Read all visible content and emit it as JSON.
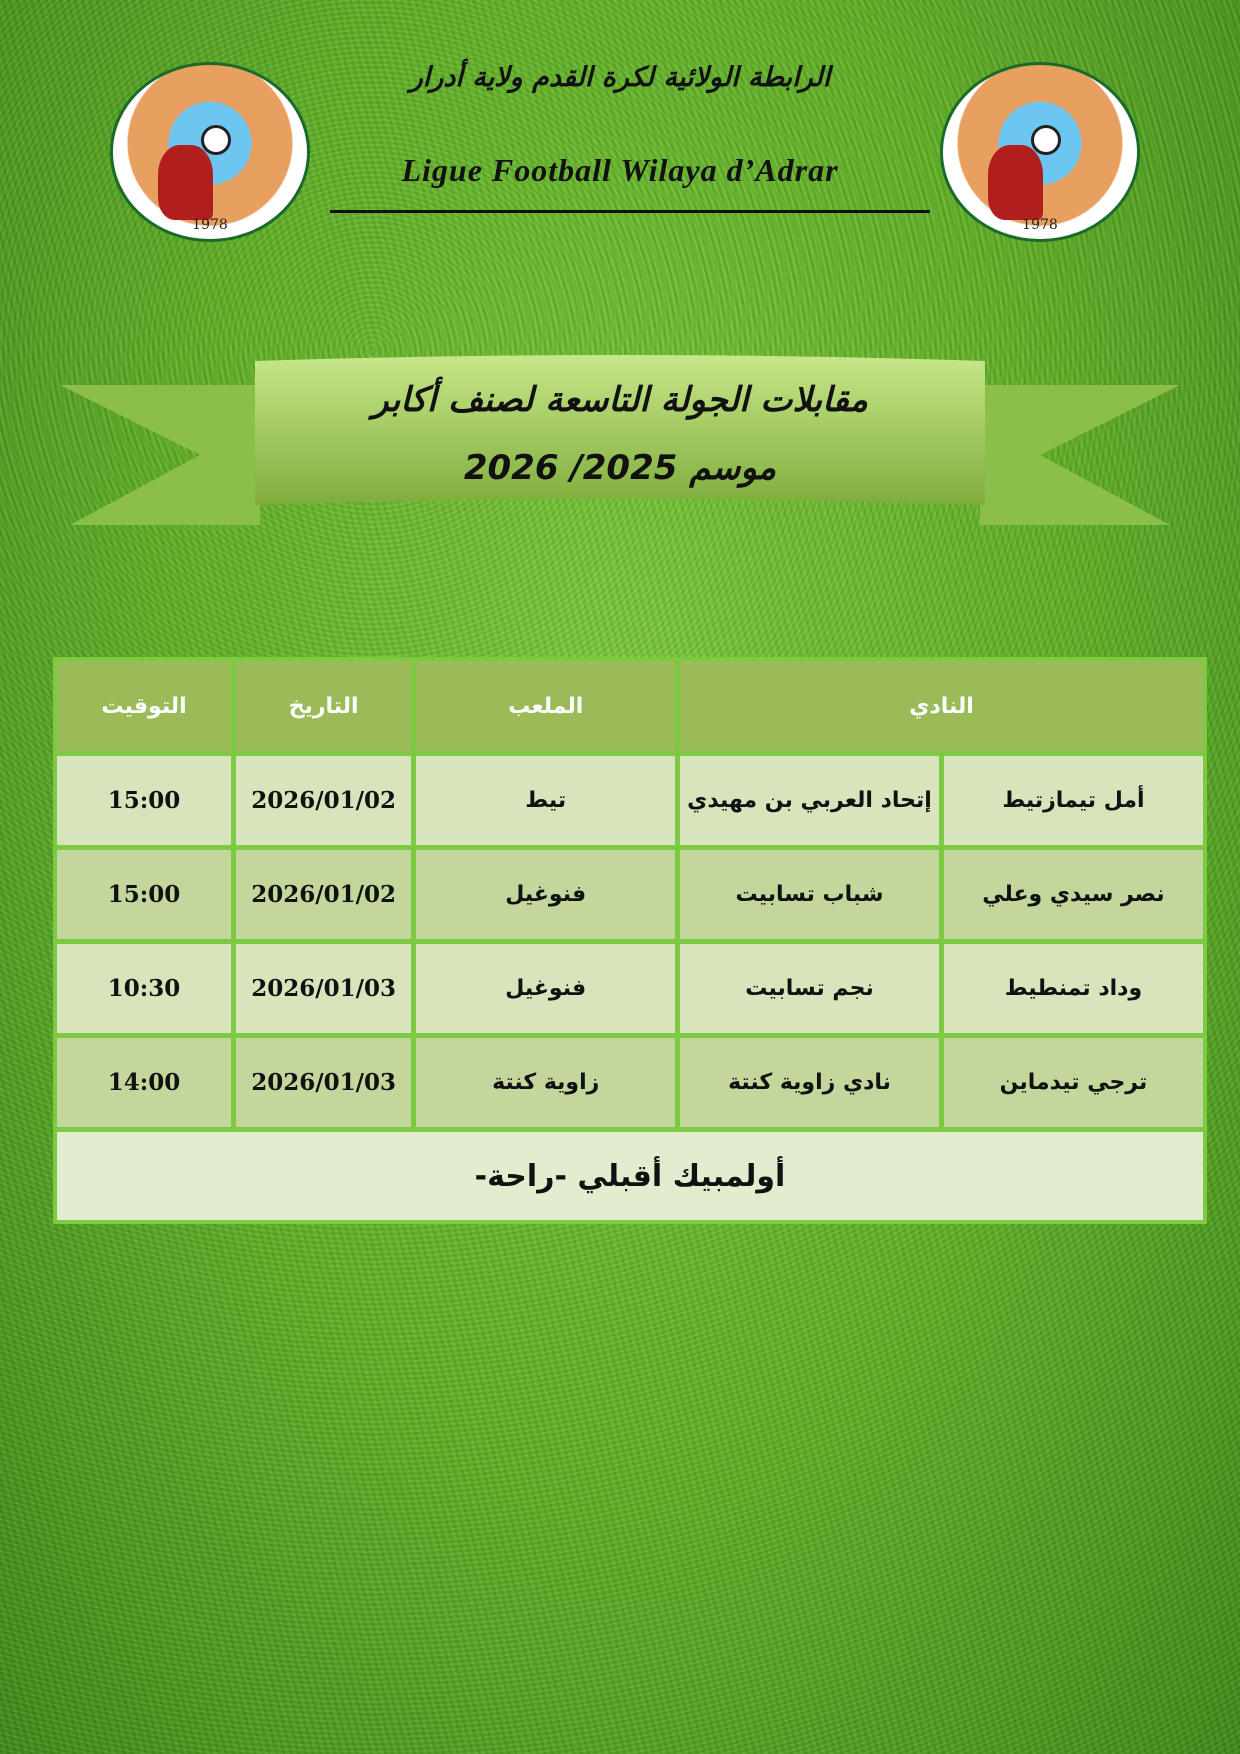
{
  "header": {
    "title_ar": "الرابطة الولائية لكرة القدم ولاية أدرار",
    "title_fr": "Ligue Football Wilaya d’Adrar",
    "logo_year": "1978"
  },
  "banner": {
    "title": "مقابلات الجولة التاسعة لصنف أكابر",
    "season": "موسم 2025/ 2026"
  },
  "table": {
    "headers": {
      "club": "النادي",
      "stadium": "الملعب",
      "date": "التاريخ",
      "time": "التوقيت"
    },
    "rows": [
      {
        "home": "أمل تيمازتيط",
        "away": "إتحاد العربي بن مهيدي",
        "stadium": "تيط",
        "date": "2026/01/02",
        "time": "15:00"
      },
      {
        "home": "نصر سيدي وعلي",
        "away": "شباب تسابيت",
        "stadium": "فنوغيل",
        "date": "2026/01/02",
        "time": "15:00"
      },
      {
        "home": "وداد تمنطيط",
        "away": "نجم تسابيت",
        "stadium": "فنوغيل",
        "date": "2026/01/03",
        "time": "10:30"
      },
      {
        "home": "ترجي تيدماين",
        "away": "نادي زاوية كنتة",
        "stadium": "زاوية كنتة",
        "date": "2026/01/03",
        "time": "14:00"
      }
    ],
    "rest": "أولمبيك أقبلي -راحة-"
  }
}
